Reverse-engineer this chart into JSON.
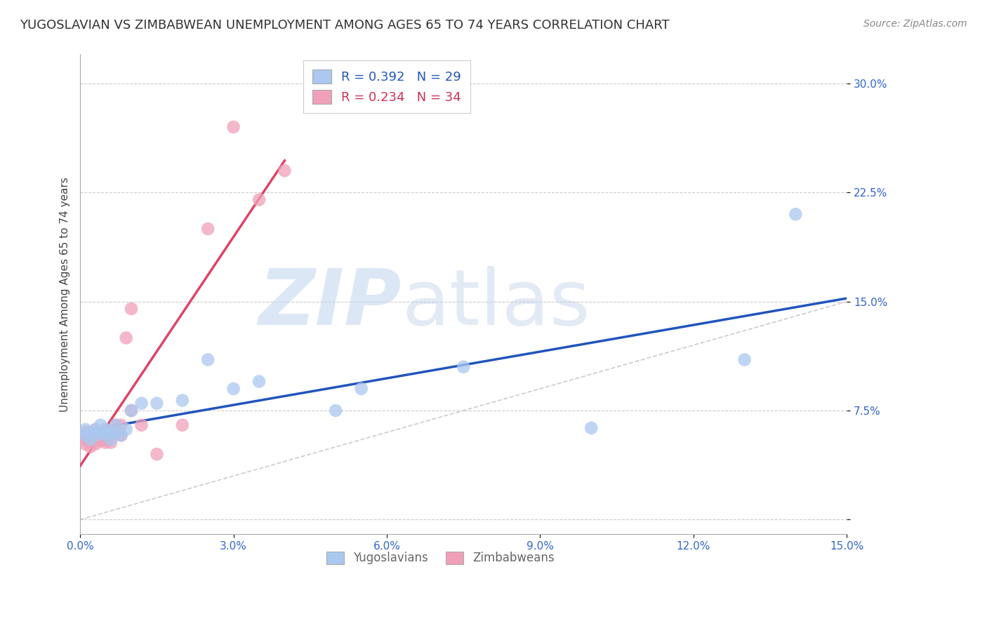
{
  "title": "YUGOSLAVIAN VS ZIMBABWEAN UNEMPLOYMENT AMONG AGES 65 TO 74 YEARS CORRELATION CHART",
  "source": "Source: ZipAtlas.com",
  "ylabel": "Unemployment Among Ages 65 to 74 years",
  "xlim": [
    0.0,
    0.15
  ],
  "ylim": [
    -0.01,
    0.32
  ],
  "xticks": [
    0.0,
    0.03,
    0.06,
    0.09,
    0.12,
    0.15
  ],
  "xtick_labels": [
    "0.0%",
    "3.0%",
    "6.0%",
    "9.0%",
    "12.0%",
    "15.0%"
  ],
  "yticks": [
    0.0,
    0.075,
    0.15,
    0.225,
    0.3
  ],
  "ytick_labels": [
    "",
    "7.5%",
    "15.0%",
    "22.5%",
    "30.0%"
  ],
  "blue_R": 0.392,
  "blue_N": 29,
  "pink_R": 0.234,
  "pink_N": 34,
  "blue_color": "#aac8f0",
  "pink_color": "#f0a0b8",
  "blue_line_color": "#2255bb",
  "pink_line_color": "#dd4466",
  "diagonal_color": "#cccccc",
  "watermark_zip": "ZIP",
  "watermark_atlas": "atlas",
  "legend_label_blue": "Yugoslavians",
  "legend_label_pink": "Zimbabweans",
  "blue_x": [
    0.001,
    0.001,
    0.002,
    0.002,
    0.003,
    0.003,
    0.004,
    0.004,
    0.005,
    0.005,
    0.006,
    0.006,
    0.007,
    0.007,
    0.008,
    0.009,
    0.01,
    0.012,
    0.015,
    0.02,
    0.025,
    0.03,
    0.035,
    0.05,
    0.055,
    0.075,
    0.1,
    0.13,
    0.14
  ],
  "blue_y": [
    0.058,
    0.062,
    0.055,
    0.06,
    0.062,
    0.058,
    0.06,
    0.065,
    0.058,
    0.062,
    0.06,
    0.055,
    0.065,
    0.06,
    0.058,
    0.062,
    0.075,
    0.08,
    0.08,
    0.082,
    0.11,
    0.09,
    0.095,
    0.075,
    0.09,
    0.105,
    0.063,
    0.11,
    0.21
  ],
  "pink_x": [
    0.001,
    0.001,
    0.001,
    0.001,
    0.002,
    0.002,
    0.002,
    0.002,
    0.003,
    0.003,
    0.003,
    0.003,
    0.004,
    0.004,
    0.004,
    0.005,
    0.005,
    0.005,
    0.006,
    0.006,
    0.007,
    0.007,
    0.008,
    0.008,
    0.009,
    0.01,
    0.01,
    0.012,
    0.015,
    0.02,
    0.025,
    0.03,
    0.035,
    0.04
  ],
  "pink_y": [
    0.058,
    0.06,
    0.055,
    0.052,
    0.06,
    0.057,
    0.054,
    0.05,
    0.058,
    0.062,
    0.056,
    0.052,
    0.06,
    0.057,
    0.054,
    0.062,
    0.057,
    0.053,
    0.058,
    0.053,
    0.065,
    0.06,
    0.065,
    0.058,
    0.125,
    0.075,
    0.145,
    0.065,
    0.045,
    0.065,
    0.2,
    0.27,
    0.22,
    0.24
  ],
  "title_fontsize": 13,
  "axis_fontsize": 11,
  "tick_fontsize": 11,
  "source_fontsize": 10
}
